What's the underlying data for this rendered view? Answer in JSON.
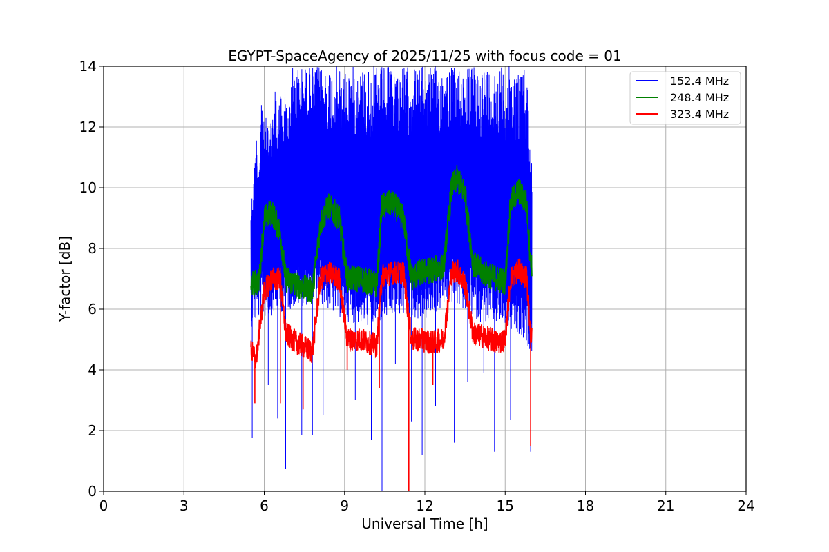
{
  "chart_data": {
    "type": "line",
    "title": "EGYPT-SpaceAgency of 2025/11/25 with focus code = 01",
    "xlabel": "Universal Time [h]",
    "ylabel": "Y-factor [dB]",
    "xlim": [
      0,
      24
    ],
    "ylim": [
      0,
      14
    ],
    "xticks": [
      0,
      3,
      6,
      9,
      12,
      15,
      18,
      21,
      24
    ],
    "yticks": [
      0,
      2,
      4,
      6,
      8,
      10,
      12,
      14
    ],
    "grid": true,
    "legend_position": "top-right",
    "series": [
      {
        "name": "152.4 MHz",
        "color": "#0000ff",
        "upper_envelope": {
          "x": [
            5.5,
            5.6,
            5.7,
            5.8,
            5.9,
            6.0,
            6.1,
            6.2,
            6.3,
            6.4,
            6.5,
            6.6,
            6.7,
            6.8,
            6.9,
            7.0,
            7.2,
            7.5,
            8.0,
            9.0,
            10.0,
            11.0,
            12.0,
            12.5,
            13.0,
            13.5,
            14.0,
            14.5,
            15.0,
            15.5,
            15.8,
            16.0
          ],
          "y": [
            9.5,
            10.3,
            11.9,
            11.0,
            13.4,
            12.0,
            12.5,
            11.8,
            12.5,
            14.0,
            12.0,
            13.5,
            12.2,
            14.0,
            12.2,
            14.0,
            14.0,
            14.0,
            14.0,
            14.0,
            14.0,
            14.0,
            14.0,
            14.0,
            14.0,
            14.0,
            14.0,
            14.0,
            14.0,
            14.0,
            14.0,
            10.9
          ]
        },
        "baseline": {
          "x": [
            5.5,
            6.0,
            7.0,
            8.0,
            9.0,
            10.0,
            11.0,
            12.0,
            13.0,
            14.0,
            15.0,
            16.0
          ],
          "y": [
            7.0,
            7.3,
            7.6,
            7.8,
            7.2,
            7.0,
            7.4,
            7.2,
            7.8,
            7.2,
            7.0,
            6.2
          ]
        },
        "dips": {
          "x": [
            5.55,
            6.15,
            6.5,
            6.8,
            7.4,
            7.8,
            8.2,
            9.4,
            10.0,
            10.4,
            10.9,
            11.5,
            11.9,
            12.4,
            13.1,
            13.6,
            14.2,
            14.6,
            15.2,
            15.95
          ],
          "y": [
            1.75,
            3.5,
            2.4,
            0.75,
            1.85,
            1.85,
            2.5,
            3.0,
            1.7,
            0.0,
            4.2,
            2.3,
            1.2,
            2.8,
            1.6,
            3.6,
            3.9,
            1.3,
            2.35,
            1.3
          ]
        }
      },
      {
        "name": "248.4 MHz",
        "color": "#008000",
        "x": [
          5.5,
          5.8,
          6.0,
          6.3,
          6.6,
          6.8,
          7.2,
          7.8,
          8.1,
          8.4,
          8.8,
          9.1,
          9.6,
          10.2,
          10.4,
          10.8,
          11.2,
          11.5,
          11.8,
          12.3,
          12.7,
          13.0,
          13.2,
          13.5,
          13.8,
          14.2,
          14.7,
          15.0,
          15.2,
          15.5,
          15.8,
          15.95
        ],
        "y": [
          6.8,
          6.9,
          9.0,
          9.2,
          8.5,
          7.0,
          6.8,
          6.6,
          8.8,
          9.4,
          9.0,
          7.0,
          7.0,
          6.8,
          9.4,
          9.5,
          9.0,
          7.0,
          7.2,
          7.3,
          7.4,
          10.0,
          10.3,
          9.8,
          7.5,
          7.2,
          7.0,
          6.9,
          9.5,
          9.9,
          9.5,
          7.5
        ]
      },
      {
        "name": "323.4 MHz",
        "color": "#ff0000",
        "x": [
          5.5,
          5.7,
          6.0,
          6.3,
          6.6,
          6.8,
          7.2,
          7.8,
          8.1,
          8.4,
          8.8,
          9.1,
          9.6,
          10.2,
          10.4,
          10.8,
          11.2,
          11.5,
          11.8,
          12.3,
          12.7,
          13.0,
          13.2,
          13.5,
          13.8,
          14.2,
          14.7,
          15.0,
          15.2,
          15.5,
          15.8,
          15.95
        ],
        "y": [
          4.6,
          4.4,
          6.6,
          7.0,
          7.0,
          5.2,
          4.9,
          4.6,
          7.0,
          7.2,
          7.0,
          5.0,
          5.0,
          4.8,
          7.1,
          7.2,
          7.2,
          5.0,
          5.0,
          4.9,
          5.0,
          7.2,
          7.3,
          6.8,
          5.2,
          5.1,
          4.9,
          5.0,
          7.0,
          7.3,
          7.0,
          5.2
        ]
      }
    ],
    "red_spikes": {
      "x": [
        5.65,
        6.6,
        7.45,
        9.1,
        10.3,
        11.4,
        12.3,
        15.95
      ],
      "y": [
        2.9,
        2.9,
        2.7,
        4.0,
        3.4,
        0.0,
        3.5,
        1.5
      ]
    }
  }
}
